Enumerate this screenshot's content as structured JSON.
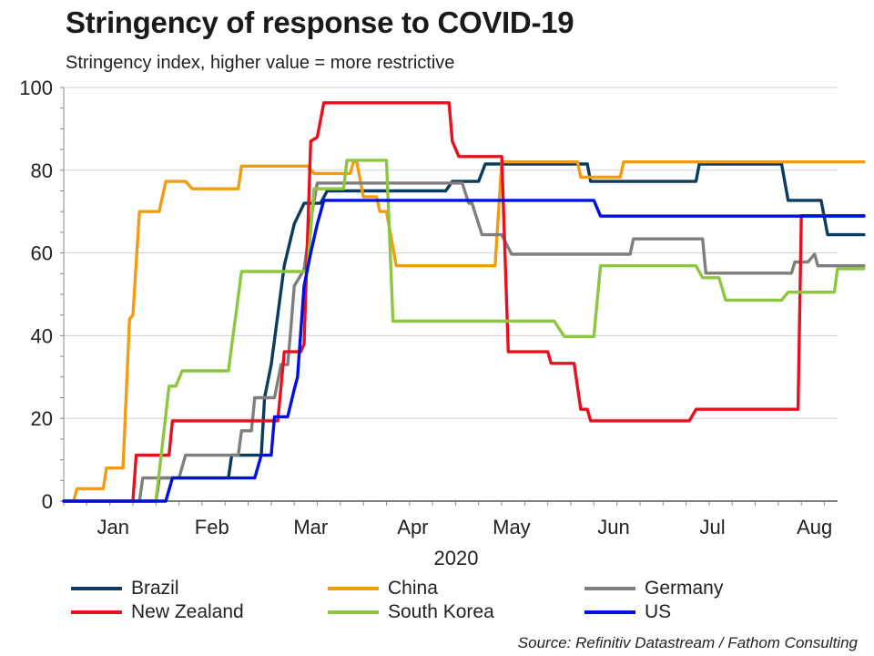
{
  "title": "Stringency of response to COVID-19",
  "subtitle": "Stringency index, higher value = more restrictive",
  "source": "Source: Refinitiv Datastream / Fathom Consulting",
  "chart_data": {
    "type": "line",
    "title": "Stringency of response to COVID-19",
    "subtitle": "Stringency index, higher value = more restrictive",
    "xlabel": "2020",
    "ylabel": "",
    "ylim": [
      0,
      100
    ],
    "xlim": [
      "2020-01-01",
      "2020-08-23"
    ],
    "yticks": [
      "0",
      "20",
      "40",
      "60",
      "80",
      "100"
    ],
    "x_tick_labels": [
      {
        "label": "Jan",
        "date": "2020-01-16"
      },
      {
        "label": "Feb",
        "date": "2020-02-15"
      },
      {
        "label": "Mar",
        "date": "2020-03-16"
      },
      {
        "label": "Apr",
        "date": "2020-04-16"
      },
      {
        "label": "May",
        "date": "2020-05-16"
      },
      {
        "label": "Jun",
        "date": "2020-06-16"
      },
      {
        "label": "Jul",
        "date": "2020-07-16"
      },
      {
        "label": "Aug",
        "date": "2020-08-16"
      }
    ],
    "grid": true,
    "legend_position": "bottom",
    "series": [
      {
        "name": "Brazil",
        "color": "#0b3c5d",
        "points": [
          [
            "2020-01-01",
            0
          ],
          [
            "2020-01-29",
            0
          ],
          [
            "2020-01-30",
            5.6
          ],
          [
            "2020-02-20",
            5.6
          ],
          [
            "2020-02-21",
            11.1
          ],
          [
            "2020-03-01",
            11.1
          ],
          [
            "2020-03-02",
            25
          ],
          [
            "2020-03-04",
            33
          ],
          [
            "2020-03-06",
            45
          ],
          [
            "2020-03-08",
            57
          ],
          [
            "2020-03-11",
            67
          ],
          [
            "2020-03-14",
            72
          ],
          [
            "2020-03-19",
            72
          ],
          [
            "2020-03-21",
            75
          ],
          [
            "2020-04-26",
            75
          ],
          [
            "2020-04-28",
            77.3
          ],
          [
            "2020-05-06",
            77.3
          ],
          [
            "2020-05-08",
            81.5
          ],
          [
            "2020-06-08",
            81.5
          ],
          [
            "2020-06-09",
            77.3
          ],
          [
            "2020-07-11",
            77.3
          ],
          [
            "2020-07-12",
            81.5
          ],
          [
            "2020-08-06",
            81.5
          ],
          [
            "2020-08-08",
            72.7
          ],
          [
            "2020-08-18",
            72.7
          ],
          [
            "2020-08-20",
            64.4
          ],
          [
            "2020-08-31",
            64.4
          ]
        ]
      },
      {
        "name": "China",
        "color": "#f39c12",
        "points": [
          [
            "2020-01-01",
            0
          ],
          [
            "2020-01-04",
            0
          ],
          [
            "2020-01-05",
            3
          ],
          [
            "2020-01-13",
            3
          ],
          [
            "2020-01-14",
            8
          ],
          [
            "2020-01-19",
            8
          ],
          [
            "2020-01-21",
            44
          ],
          [
            "2020-01-22",
            45
          ],
          [
            "2020-01-24",
            70
          ],
          [
            "2020-01-30",
            70
          ],
          [
            "2020-02-01",
            77.3
          ],
          [
            "2020-02-07",
            77.3
          ],
          [
            "2020-02-09",
            75.5
          ],
          [
            "2020-02-23",
            75.5
          ],
          [
            "2020-02-24",
            81
          ],
          [
            "2020-03-15",
            81
          ],
          [
            "2020-03-17",
            79.2
          ],
          [
            "2020-03-28",
            79.2
          ],
          [
            "2020-03-29",
            82
          ],
          [
            "2020-03-30",
            82
          ],
          [
            "2020-04-01",
            73.6
          ],
          [
            "2020-04-05",
            73.6
          ],
          [
            "2020-04-06",
            70
          ],
          [
            "2020-04-08",
            70
          ],
          [
            "2020-04-11",
            56.9
          ],
          [
            "2020-05-11",
            56.9
          ],
          [
            "2020-05-13",
            82
          ],
          [
            "2020-06-05",
            82
          ],
          [
            "2020-06-06",
            78.3
          ],
          [
            "2020-06-18",
            78.3
          ],
          [
            "2020-06-19",
            82
          ],
          [
            "2020-08-31",
            82
          ]
        ]
      },
      {
        "name": "Germany",
        "color": "#7f7f7f",
        "points": [
          [
            "2020-01-01",
            0
          ],
          [
            "2020-01-24",
            0
          ],
          [
            "2020-01-25",
            5.6
          ],
          [
            "2020-02-05",
            5.6
          ],
          [
            "2020-02-07",
            11.1
          ],
          [
            "2020-02-23",
            11.1
          ],
          [
            "2020-02-24",
            17
          ],
          [
            "2020-02-27",
            17
          ],
          [
            "2020-02-28",
            25
          ],
          [
            "2020-03-05",
            25
          ],
          [
            "2020-03-07",
            33
          ],
          [
            "2020-03-09",
            33
          ],
          [
            "2020-03-10",
            42
          ],
          [
            "2020-03-11",
            52
          ],
          [
            "2020-03-14",
            56
          ],
          [
            "2020-03-16",
            68
          ],
          [
            "2020-03-18",
            76.9
          ],
          [
            "2020-05-01",
            76.9
          ],
          [
            "2020-05-03",
            72
          ],
          [
            "2020-05-04",
            72
          ],
          [
            "2020-05-07",
            64.4
          ],
          [
            "2020-05-13",
            64.4
          ],
          [
            "2020-05-16",
            59.7
          ],
          [
            "2020-06-21",
            59.7
          ],
          [
            "2020-06-22",
            63.4
          ],
          [
            "2020-07-13",
            63.4
          ],
          [
            "2020-07-14",
            55.1
          ],
          [
            "2020-08-09",
            55.1
          ],
          [
            "2020-08-10",
            57.8
          ],
          [
            "2020-08-14",
            57.8
          ],
          [
            "2020-08-16",
            59.7
          ],
          [
            "2020-08-17",
            56.9
          ],
          [
            "2020-08-31",
            56.9
          ]
        ]
      },
      {
        "name": "New Zealand",
        "color": "#e8101e",
        "points": [
          [
            "2020-01-01",
            0
          ],
          [
            "2020-01-22",
            0
          ],
          [
            "2020-01-23",
            11.1
          ],
          [
            "2020-02-02",
            11.1
          ],
          [
            "2020-02-03",
            19.4
          ],
          [
            "2020-03-06",
            19.4
          ],
          [
            "2020-03-08",
            36.1
          ],
          [
            "2020-03-13",
            36.1
          ],
          [
            "2020-03-14",
            38
          ],
          [
            "2020-03-16",
            87
          ],
          [
            "2020-03-18",
            88
          ],
          [
            "2020-03-20",
            96.3
          ],
          [
            "2020-04-27",
            96.3
          ],
          [
            "2020-04-28",
            87
          ],
          [
            "2020-04-30",
            83.3
          ],
          [
            "2020-05-13",
            83.3
          ],
          [
            "2020-05-15",
            36.1
          ],
          [
            "2020-05-27",
            36.1
          ],
          [
            "2020-05-28",
            33.3
          ],
          [
            "2020-06-04",
            33.3
          ],
          [
            "2020-06-06",
            22.2
          ],
          [
            "2020-06-08",
            22.2
          ],
          [
            "2020-06-09",
            19.4
          ],
          [
            "2020-07-09",
            19.4
          ],
          [
            "2020-07-11",
            22.2
          ],
          [
            "2020-08-11",
            22.2
          ],
          [
            "2020-08-12",
            69
          ],
          [
            "2020-08-31",
            69
          ]
        ]
      },
      {
        "name": "South Korea",
        "color": "#8dc63f",
        "points": [
          [
            "2020-01-01",
            0
          ],
          [
            "2020-01-29",
            0
          ],
          [
            "2020-02-02",
            27.8
          ],
          [
            "2020-02-04",
            27.8
          ],
          [
            "2020-02-06",
            31.5
          ],
          [
            "2020-02-20",
            31.5
          ],
          [
            "2020-02-24",
            55.5
          ],
          [
            "2020-03-15",
            55.5
          ],
          [
            "2020-03-17",
            75.5
          ],
          [
            "2020-03-26",
            75.5
          ],
          [
            "2020-03-27",
            82.4
          ],
          [
            "2020-04-08",
            82.4
          ],
          [
            "2020-04-10",
            43.5
          ],
          [
            "2020-05-29",
            43.5
          ],
          [
            "2020-06-01",
            39.8
          ],
          [
            "2020-06-10",
            39.8
          ],
          [
            "2020-06-12",
            56.9
          ],
          [
            "2020-07-11",
            56.9
          ],
          [
            "2020-07-13",
            54
          ],
          [
            "2020-07-18",
            54
          ],
          [
            "2020-07-20",
            48.6
          ],
          [
            "2020-08-06",
            48.6
          ],
          [
            "2020-08-08",
            50.5
          ],
          [
            "2020-08-22",
            50.5
          ],
          [
            "2020-08-23",
            56.2
          ],
          [
            "2020-08-31",
            56.2
          ]
        ]
      },
      {
        "name": "US",
        "color": "#0010e0",
        "points": [
          [
            "2020-01-01",
            0
          ],
          [
            "2020-02-01",
            0
          ],
          [
            "2020-02-03",
            5.6
          ],
          [
            "2020-02-28",
            5.6
          ],
          [
            "2020-03-01",
            11.1
          ],
          [
            "2020-03-04",
            11.1
          ],
          [
            "2020-03-05",
            20.4
          ],
          [
            "2020-03-09",
            20.4
          ],
          [
            "2020-03-11",
            27
          ],
          [
            "2020-03-12",
            30
          ],
          [
            "2020-03-14",
            52
          ],
          [
            "2020-03-16",
            60
          ],
          [
            "2020-03-18",
            67
          ],
          [
            "2020-03-20",
            72.7
          ],
          [
            "2020-05-31",
            72.7
          ],
          [
            "2020-06-01",
            72.7
          ],
          [
            "2020-06-10",
            72.7
          ],
          [
            "2020-06-12",
            68.9
          ],
          [
            "2020-08-31",
            68.9
          ]
        ]
      }
    ]
  },
  "legend": {
    "items": [
      {
        "label": "Brazil",
        "color": "#0b3c5d"
      },
      {
        "label": "China",
        "color": "#f39c12"
      },
      {
        "label": "Germany",
        "color": "#7f7f7f"
      },
      {
        "label": "New Zealand",
        "color": "#e8101e"
      },
      {
        "label": "South Korea",
        "color": "#8dc63f"
      },
      {
        "label": "US",
        "color": "#0010e0"
      }
    ]
  }
}
